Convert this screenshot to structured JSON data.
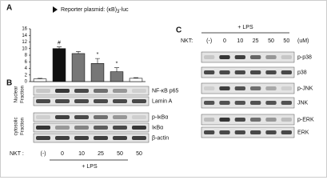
{
  "panels": {
    "a": "A",
    "b": "B",
    "c": "C"
  },
  "chart_data": {
    "type": "bar",
    "title": "Reporter plasmid: (κB)",
    "title_subscript": "3",
    "title_suffix": "-luc",
    "categories": [
      null,
      null,
      null,
      null,
      null,
      null
    ],
    "values": [
      0.8,
      10,
      8.5,
      5.5,
      3,
      1
    ],
    "errors": [
      0.2,
      0.5,
      0.6,
      1.5,
      1.2,
      0.2
    ],
    "colors": [
      "#ffffff",
      "#111111",
      "#777777",
      "#777777",
      "#777777",
      "#ffffff"
    ],
    "annotations": [
      "#",
      "*",
      "*"
    ],
    "ylim": [
      0,
      16
    ],
    "yticks": [
      0,
      2,
      4,
      6,
      8,
      10,
      12,
      14,
      16
    ]
  },
  "blot_b": {
    "fractions": [
      [
        "Nuclear",
        "Fraction"
      ],
      [
        "cytosolic",
        "Fraction"
      ]
    ],
    "rows": [
      "NF-κB p65",
      "Lamin A",
      "p-Iκ​Bα",
      "IκBα",
      "β-actin"
    ],
    "nkt_label": "NKT :",
    "lanes": [
      "(-)",
      "0",
      "10",
      "25",
      "50",
      "50"
    ],
    "treatment": "+ LPS"
  },
  "blot_c": {
    "rows": [
      "p-p38",
      "p38",
      "p-JNK",
      "JNK",
      "p-ERK",
      "ERK"
    ],
    "nkt_label": "NKT:",
    "lanes": [
      "(-)",
      "0",
      "10",
      "25",
      "50",
      "50"
    ],
    "unit": "(uM)",
    "treatment": "+ LPS"
  }
}
